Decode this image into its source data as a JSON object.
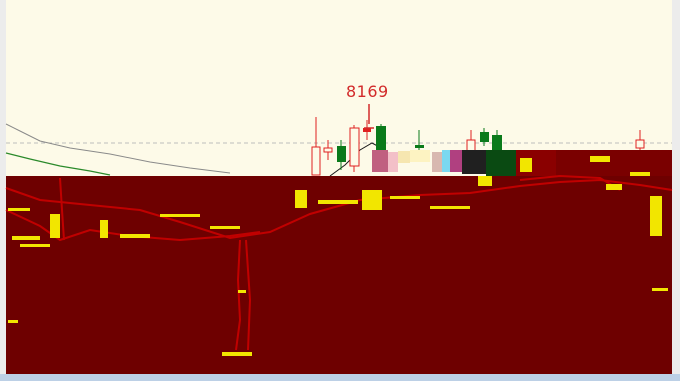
{
  "chart": {
    "peak_label": "8169",
    "colors": {
      "up": "#e02020",
      "down": "#0a7a1a",
      "price_bg": "#fdfae8",
      "overlay_bg": "#6e0000",
      "overlay_mark": "#f2e600",
      "overlay_line": "#c00000",
      "reference_line": "#bdbdbd",
      "ma_gray": "#8a8a8a",
      "ma_green": "#2b8a2b",
      "ma_black": "#1a1a1a"
    },
    "icons": [
      "peak-arrow-icon"
    ]
  }
}
